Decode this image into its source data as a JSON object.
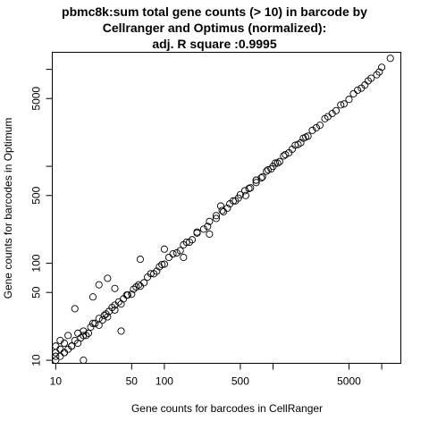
{
  "chart_data": {
    "type": "scatter",
    "title_lines": [
      "pbmc8k:sum total gene counts (> 10) in barcode by",
      "Cellranger and Optimus (normalized):",
      "adj. R square :0.9995"
    ],
    "xlabel": "Gene counts for barcodes in CellRanger",
    "ylabel": "Gene counts for barcodes in Optimum",
    "x_scale": "log",
    "y_scale": "log",
    "xlim": [
      9.3,
      15000
    ],
    "ylim": [
      9.3,
      15000
    ],
    "x_ticks": [
      10,
      50,
      100,
      500,
      1000,
      5000,
      10000
    ],
    "x_tick_labels": [
      "10",
      "50",
      "100",
      "500",
      "",
      "5000",
      ""
    ],
    "y_ticks": [
      10,
      50,
      100,
      500,
      1000,
      5000,
      10000
    ],
    "y_tick_labels": [
      "10",
      "50",
      "100",
      "500",
      "",
      "5000",
      ""
    ],
    "grid": false,
    "legend": "none",
    "point_marker": "open-circle",
    "point_color": "#000000",
    "series": [
      {
        "x": [
          12000,
          10000,
          9000,
          7500,
          6500,
          5500,
          4500,
          3500,
          3000,
          2500,
          2000,
          1800,
          1500,
          1300,
          1100,
          1000,
          900,
          800,
          700,
          600,
          500,
          450,
          400,
          350,
          300,
          250,
          200,
          180,
          160,
          140,
          120,
          100,
          90,
          80,
          70,
          60,
          55,
          50,
          45,
          40,
          35,
          30,
          28,
          25,
          22,
          20,
          18,
          16,
          14,
          12,
          11,
          10,
          10,
          10,
          10,
          11,
          11,
          12,
          12,
          13,
          13,
          14,
          15,
          16,
          17,
          18,
          19,
          21,
          23,
          25,
          27,
          29,
          31,
          33,
          35,
          38,
          42,
          46,
          52,
          58,
          65,
          75,
          85,
          95,
          110,
          130,
          150,
          170,
          200,
          230,
          260,
          300,
          340,
          380,
          430,
          480,
          550,
          620,
          700,
          780,
          870,
          960,
          1050,
          1150,
          1250,
          1400,
          1600,
          1700,
          1900,
          2100,
          2300,
          2700,
          3200,
          3800,
          4200,
          5000,
          6000,
          7000,
          8000,
          9500,
          700,
          560,
          260,
          30,
          35,
          60,
          100,
          150,
          330,
          40,
          18,
          15,
          22,
          25
        ],
        "y": [
          13000,
          10500,
          8800,
          7600,
          6400,
          5600,
          4400,
          3500,
          3100,
          2500,
          2000,
          1750,
          1500,
          1320,
          1080,
          1000,
          920,
          780,
          720,
          590,
          510,
          440,
          410,
          340,
          310,
          240,
          205,
          175,
          165,
          135,
          125,
          98,
          92,
          78,
          72,
          58,
          57,
          48,
          47,
          38,
          37,
          28,
          29,
          23,
          24,
          19,
          18,
          15,
          14,
          12,
          11,
          10,
          11,
          12,
          14,
          13,
          16,
          12,
          15,
          13,
          18,
          14,
          16,
          19,
          17,
          20,
          18,
          22,
          24,
          27,
          26,
          30,
          32,
          35,
          33,
          40,
          43,
          47,
          54,
          60,
          63,
          78,
          83,
          97,
          115,
          128,
          155,
          165,
          210,
          225,
          270,
          290,
          350,
          370,
          440,
          470,
          560,
          600,
          720,
          760,
          890,
          940,
          1080,
          1120,
          1280,
          1380,
          1650,
          1680,
          1950,
          2050,
          2350,
          2650,
          3250,
          3750,
          4300,
          4900,
          6100,
          6900,
          8100,
          9400,
          680,
          500,
          200,
          70,
          55,
          110,
          140,
          115,
          390,
          20,
          10,
          34,
          45,
          60
        ]
      }
    ]
  }
}
